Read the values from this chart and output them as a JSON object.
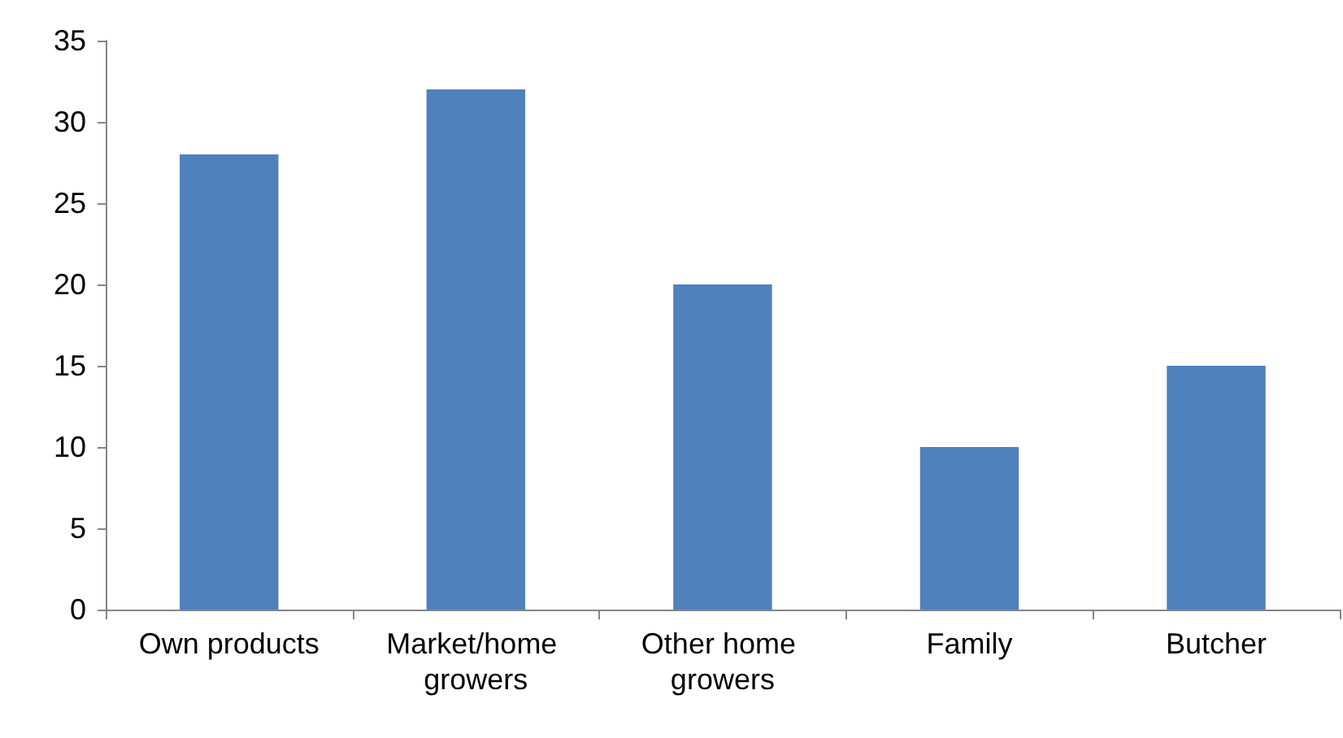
{
  "chart_data": {
    "type": "bar",
    "categories": [
      "Own products",
      "Market/home growers",
      "Other home growers",
      "Family",
      "Butcher"
    ],
    "values": [
      28,
      32,
      20,
      10,
      15
    ],
    "color": "#4f81bd",
    "ylim": [
      0,
      35
    ],
    "yticks": [
      0,
      5,
      10,
      15,
      20,
      25,
      30,
      35
    ]
  }
}
